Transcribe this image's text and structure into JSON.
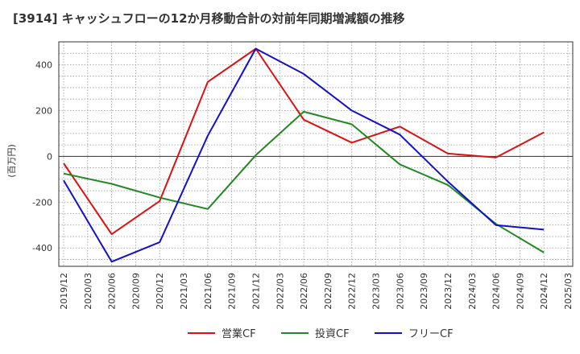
{
  "chart_data": {
    "type": "line",
    "title": "[3914]  キャッシュフローの12か月移動合計の対前年同期増減額の推移",
    "ylabel": "(百万円)",
    "xlabel": "",
    "x": [
      "2019/12",
      "2020/03",
      "2020/06",
      "2020/09",
      "2020/12",
      "2021/03",
      "2021/06",
      "2021/09",
      "2021/12",
      "2022/03",
      "2022/06",
      "2022/09",
      "2022/12",
      "2023/03",
      "2023/06",
      "2023/09",
      "2023/12",
      "2024/03",
      "2024/06",
      "2024/09",
      "2024/12",
      "2025/03"
    ],
    "ylim": [
      -480,
      500
    ],
    "yticks": [
      -400,
      -200,
      0,
      200,
      400
    ],
    "grid": true,
    "legend_position": "bottom",
    "series": [
      {
        "name": "営業CF",
        "color": "#dd1111",
        "points": [
          [
            "2019/12",
            -30
          ],
          [
            "2020/06",
            -340
          ],
          [
            "2020/12",
            -195
          ],
          [
            "2021/06",
            325
          ],
          [
            "2021/12",
            470
          ],
          [
            "2022/06",
            160
          ],
          [
            "2022/12",
            60
          ],
          [
            "2023/06",
            130
          ],
          [
            "2023/12",
            12
          ],
          [
            "2024/06",
            -5
          ],
          [
            "2024/12",
            105
          ]
        ]
      },
      {
        "name": "投資CF",
        "color": "#228822",
        "points": [
          [
            "2019/12",
            -75
          ],
          [
            "2020/06",
            -120
          ],
          [
            "2020/12",
            -180
          ],
          [
            "2021/06",
            -230
          ],
          [
            "2021/12",
            5
          ],
          [
            "2022/06",
            195
          ],
          [
            "2022/12",
            140
          ],
          [
            "2023/06",
            -35
          ],
          [
            "2023/12",
            -125
          ],
          [
            "2024/06",
            -295
          ],
          [
            "2024/12",
            -420
          ]
        ]
      },
      {
        "name": "フリーCF",
        "color": "#1111cc",
        "points": [
          [
            "2019/12",
            -105
          ],
          [
            "2020/06",
            -460
          ],
          [
            "2020/12",
            -375
          ],
          [
            "2021/06",
            90
          ],
          [
            "2021/12",
            470
          ],
          [
            "2022/06",
            360
          ],
          [
            "2022/12",
            200
          ],
          [
            "2023/06",
            95
          ],
          [
            "2023/12",
            -110
          ],
          [
            "2024/06",
            -300
          ],
          [
            "2024/12",
            -320
          ]
        ]
      }
    ]
  }
}
